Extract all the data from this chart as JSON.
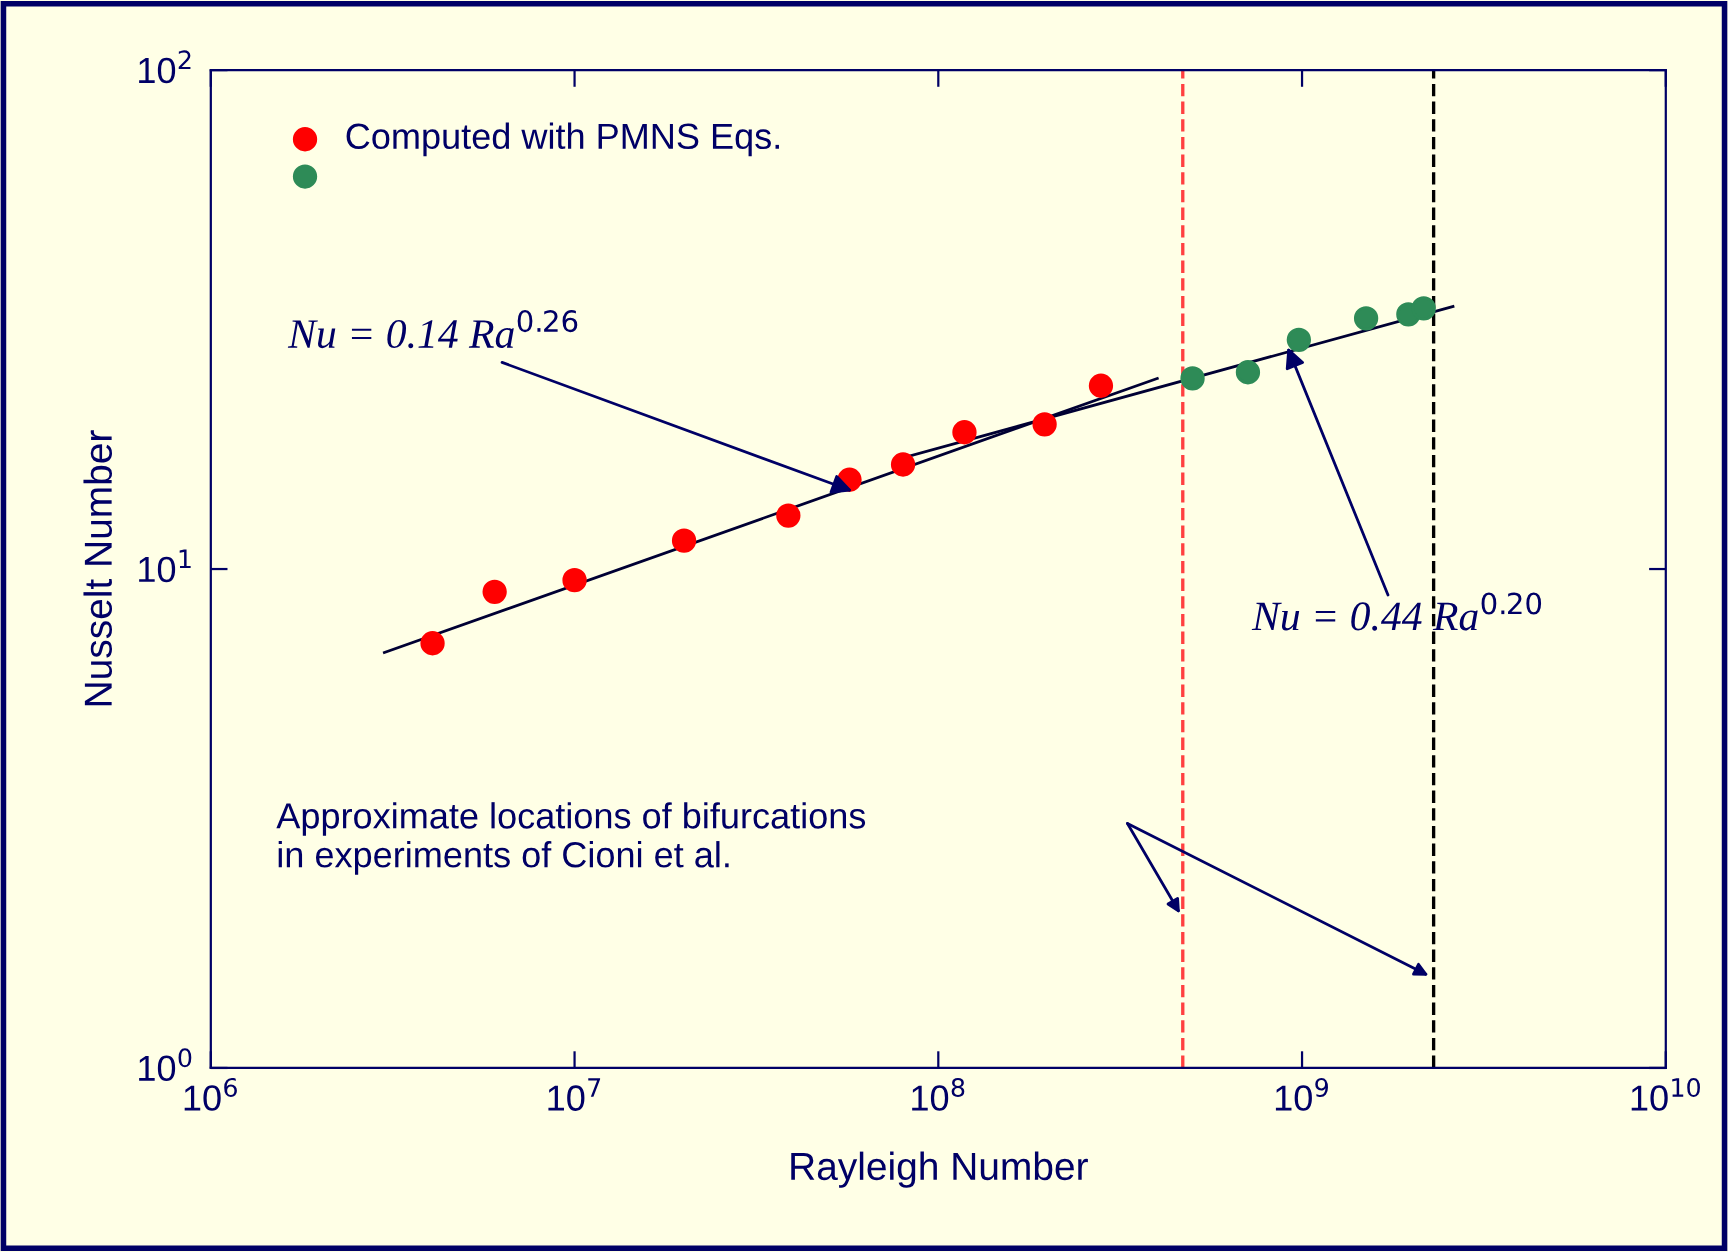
{
  "chart_data": {
    "type": "scatter",
    "xlabel": "Rayleigh Number",
    "ylabel": "Nusselt Number",
    "log": "xy",
    "xlim": [
      1000000,
      10000000000
    ],
    "ylim": [
      1,
      100
    ],
    "xticks": [
      {
        "value": 1000000,
        "label": "10$^{6}$"
      },
      {
        "value": 10000000,
        "label": "10$^{7}$"
      },
      {
        "value": 100000000,
        "label": "10$^{8}$"
      },
      {
        "value": 1000000000,
        "label": "10$^{9}$"
      },
      {
        "value": 10000000000,
        "label": "10$^{10}$"
      }
    ],
    "yticks": [
      {
        "value": 1,
        "label": "10$^{0}$"
      },
      {
        "value": 10,
        "label": "10$^{1}$"
      },
      {
        "value": 100,
        "label": "10$^{2}$"
      }
    ],
    "grid": false,
    "legend": "top left",
    "marker": "circle",
    "series": [
      {
        "name": "Computed with PMNS Eqs.",
        "color": "#ff0000",
        "x": [
          4070000,
          6030000,
          10000000,
          20000000,
          38700000,
          57000000,
          80000000,
          118000000,
          196000000,
          280000000
        ],
        "values": [
          7.1,
          9.0,
          9.5,
          11.4,
          12.8,
          15.1,
          16.2,
          18.8,
          19.5,
          23.3
        ]
      },
      {
        "color": "#2e8b57",
        "x": [
          500000000,
          710000000,
          980000000,
          1500000000,
          1960000000,
          2160000000
        ],
        "values": [
          24.1,
          24.8,
          28.8,
          31.8,
          32.4,
          33.3
        ]
      },
      {
        "type": "line",
        "marker": "none",
        "color": "#000033",
        "x": [
          3000000,
          400000000
        ],
        "values": [
          6.8,
          24.1
        ]
      },
      {
        "type": "line",
        "marker": "none",
        "color": "#000033",
        "x": [
          80000000,
          2600000000
        ],
        "values": [
          16.7,
          33.6
        ]
      }
    ],
    "ref_lines": [
      {
        "axis": "x",
        "value": 470000000,
        "color": "#ff4040",
        "line_style": "dashed"
      },
      {
        "axis": "x",
        "value": 2300000000,
        "color": "#000000",
        "line_style": "dashed"
      }
    ],
    "annotations": [
      {
        "text": "Nu = 0.14 Ra$^{0.26}$",
        "x": 60000000,
        "y": 14.2
      },
      {
        "text": "Nu = 0.44 Ra$^{0.20}$",
        "x": 900000000,
        "y": 28.5
      },
      "Approximate locations of bifurcations\nin experiments of Cioni et al."
    ]
  }
}
